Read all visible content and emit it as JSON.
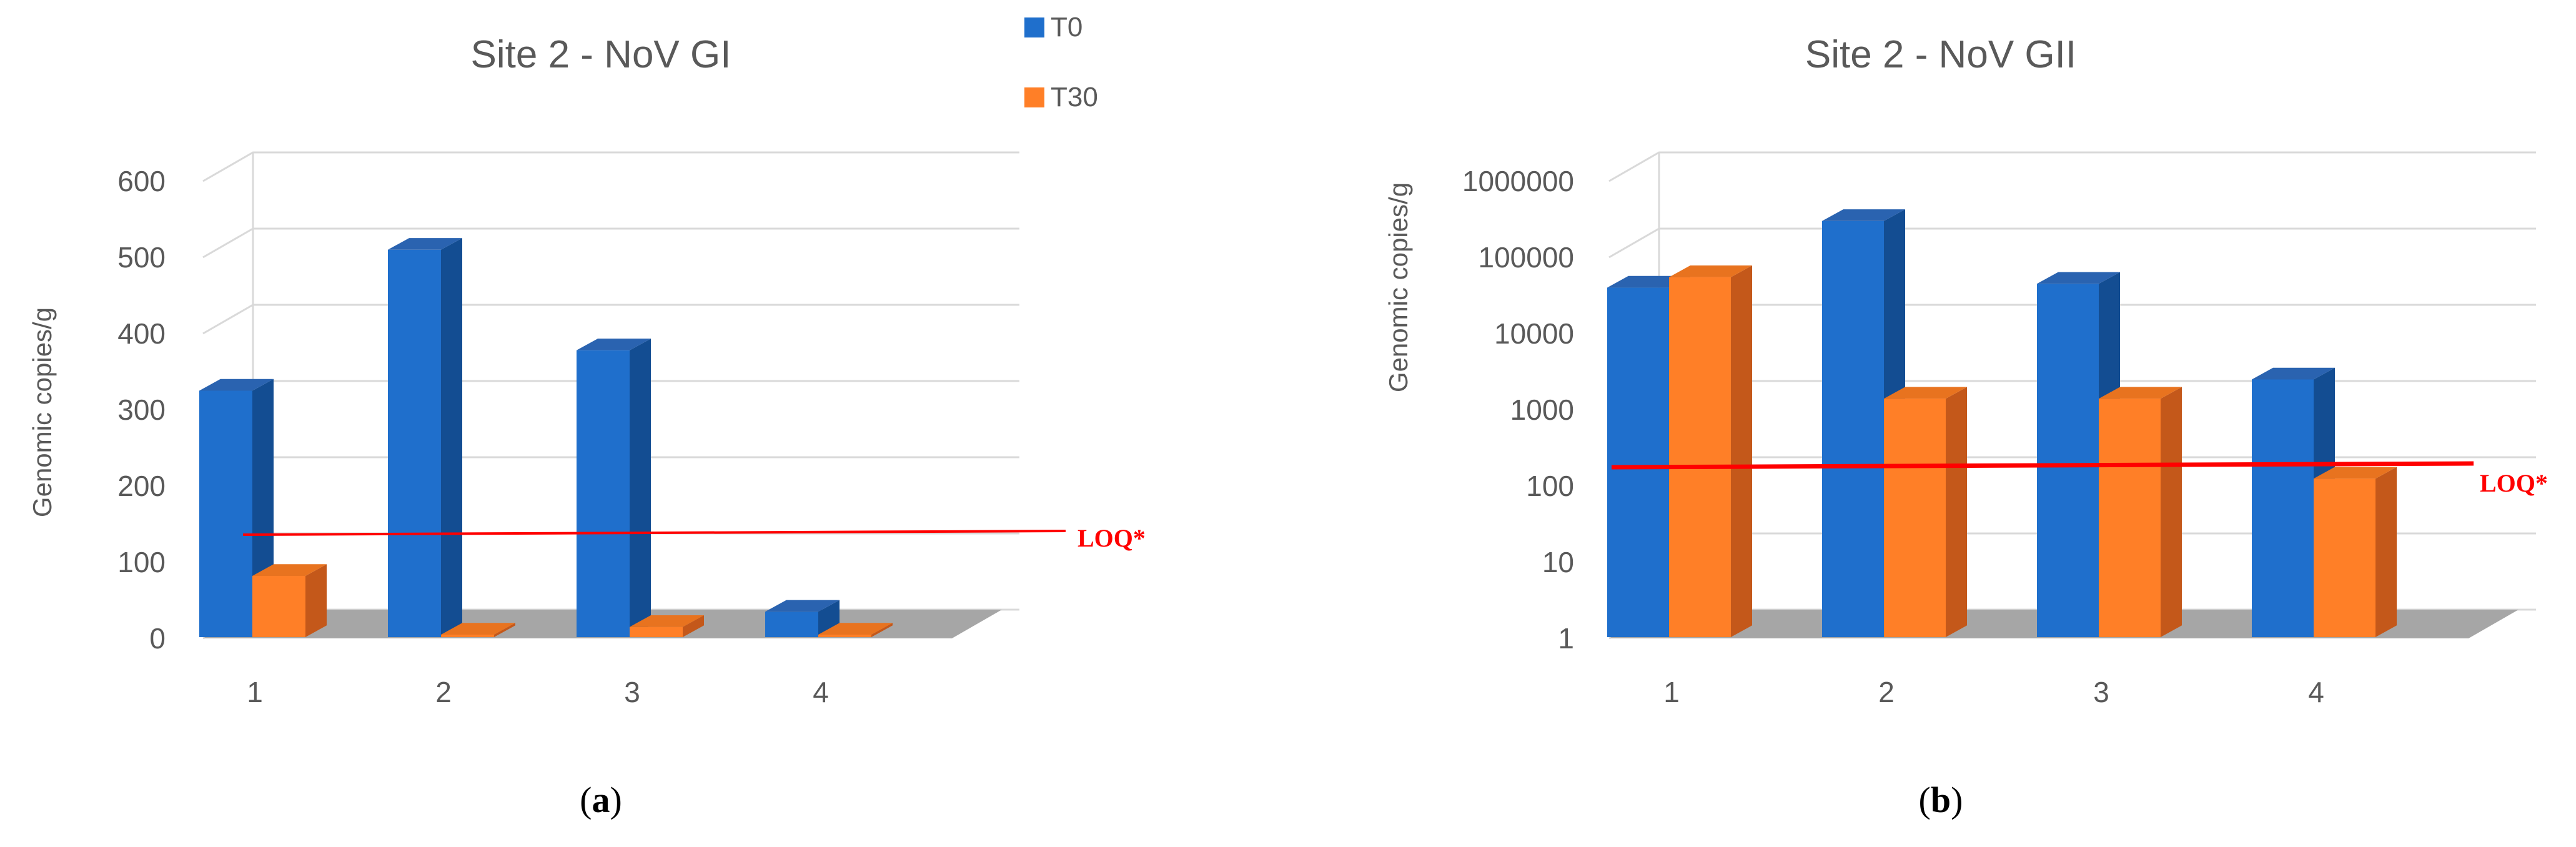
{
  "legend": {
    "items": [
      {
        "label": "T0",
        "color": "#1F6FCC"
      },
      {
        "label": "T30",
        "color": "#FF7F27"
      }
    ]
  },
  "colors": {
    "t0_front": "#1F6FCC",
    "t0_side": "#134D92",
    "t0_top": "#2A63B0",
    "t30_front": "#FF7F27",
    "t30_side": "#C4581A",
    "t30_top": "#E8731F",
    "floor": "#A6A6A6",
    "grid": "#D9D9D9",
    "loq": "#FF0000",
    "axis_text": "#595959",
    "title_text": "#595959"
  },
  "chart_data": [
    {
      "type": "bar",
      "panel_label": "(a)",
      "panel_letter": "a",
      "title": "Site 2 - NoV GI",
      "ylabel": "Genomic copies/g",
      "yscale": "linear",
      "ylim": [
        0,
        600
      ],
      "yticks": [
        "0",
        "100",
        "200",
        "300",
        "400",
        "500",
        "600"
      ],
      "ytick_values": [
        0,
        100,
        200,
        300,
        400,
        500,
        600
      ],
      "categories": [
        "1",
        "2",
        "3",
        "4"
      ],
      "series": [
        {
          "name": "T0",
          "values": [
            325,
            510,
            378,
            35
          ]
        },
        {
          "name": "T30",
          "values": [
            82,
            0,
            15,
            0
          ]
        }
      ],
      "loq": {
        "label": "LOQ*",
        "value": 135
      },
      "grid": true,
      "legend_position": "top-right"
    },
    {
      "type": "bar",
      "panel_label": "(b)",
      "panel_letter": "b",
      "title": "Site 2 - NoV GII",
      "ylabel": "Genomic copies/g",
      "yscale": "log",
      "ylim": [
        1,
        1000000
      ],
      "yticks": [
        "1",
        "10",
        "100",
        "1000",
        "10000",
        "100000",
        "1000000"
      ],
      "ytick_values": [
        1,
        10,
        100,
        1000,
        10000,
        100000,
        1000000
      ],
      "categories": [
        "1",
        "2",
        "3",
        "4"
      ],
      "series": [
        {
          "name": "T0",
          "values": [
            40000,
            300000,
            45000,
            2500
          ]
        },
        {
          "name": "T30",
          "values": [
            55000,
            1400,
            1400,
            125
          ]
        }
      ],
      "loq": {
        "label": "LOQ*",
        "value": 190
      },
      "grid": true
    }
  ]
}
